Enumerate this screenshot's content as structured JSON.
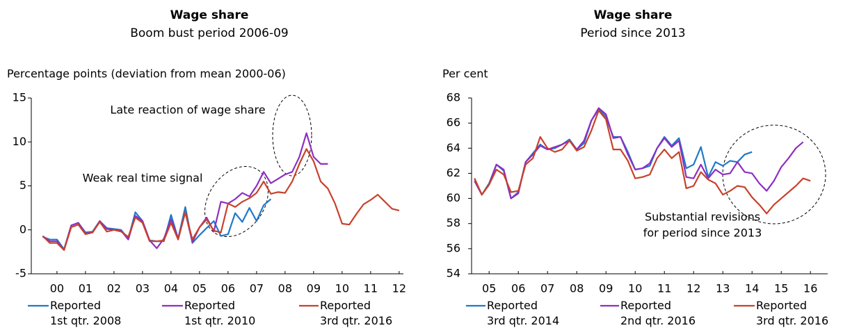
{
  "chart_data": [
    {
      "type": "line",
      "title": "Wage share",
      "subtitle": "Boom bust period 2006-09",
      "y_label": "Percentage points (deviation from mean 2000-06)",
      "annotations": [
        "Late reaction of wage share",
        "Weak real time signal"
      ],
      "legend": "bottom",
      "xlim": [
        1999.6,
        2012.65
      ],
      "ylim": [
        -5,
        15
      ],
      "yticks": [
        -5,
        0,
        5,
        10,
        15
      ],
      "xticks": [
        {
          "value": 2000.5,
          "label": "00"
        },
        {
          "value": 2001.5,
          "label": "01"
        },
        {
          "value": 2002.5,
          "label": "02"
        },
        {
          "value": 2003.5,
          "label": "03"
        },
        {
          "value": 2004.5,
          "label": "04"
        },
        {
          "value": 2005.5,
          "label": "05"
        },
        {
          "value": 2006.5,
          "label": "06"
        },
        {
          "value": 2007.5,
          "label": "07"
        },
        {
          "value": 2008.5,
          "label": "08"
        },
        {
          "value": 2009.5,
          "label": "09"
        },
        {
          "value": 2010.5,
          "label": "10"
        },
        {
          "value": 2011.5,
          "label": "11"
        },
        {
          "value": 2012.5,
          "label": "12"
        }
      ],
      "x": [
        2000,
        2000.25,
        2000.5,
        2000.75,
        2001,
        2001.25,
        2001.5,
        2001.75,
        2002,
        2002.25,
        2002.5,
        2002.75,
        2003,
        2003.25,
        2003.5,
        2003.75,
        2004,
        2004.25,
        2004.5,
        2004.75,
        2005,
        2005.25,
        2005.5,
        2005.75,
        2006,
        2006.25,
        2006.5,
        2006.75,
        2007,
        2007.25,
        2007.5,
        2007.75,
        2008,
        2008.25,
        2008.5,
        2008.75,
        2009,
        2009.25,
        2009.5,
        2009.75,
        2010,
        2010.25,
        2010.5,
        2010.75,
        2011,
        2011.25,
        2011.5,
        2011.75,
        2012,
        2012.25,
        2012.5
      ],
      "series": [
        {
          "name": "Reported\n1st qtr. 2008",
          "color": "#1f78c8",
          "values": [
            -0.8,
            -1.1,
            -1.1,
            -2.2,
            0.5,
            0.8,
            -0.3,
            -0.2,
            1.0,
            0.2,
            0.1,
            0.0,
            -1.0,
            2.0,
            1.0,
            -1.2,
            -1.3,
            -1.3,
            1.7,
            -1.0,
            2.6,
            -1.5,
            -0.6,
            0.2,
            1.0,
            -0.7,
            -0.5,
            1.9,
            0.9,
            2.5,
            1.0,
            2.8,
            3.5,
            null,
            null,
            null,
            null,
            null,
            null,
            null,
            null,
            null,
            null,
            null,
            null,
            null,
            null,
            null,
            null,
            null,
            null
          ]
        },
        {
          "name": "Reported\n1st qtr. 2010",
          "color": "#8e2fc0",
          "values": [
            -0.7,
            -1.3,
            -1.3,
            -2.3,
            0.5,
            0.8,
            -0.4,
            -0.3,
            1.0,
            0.1,
            0.0,
            -0.1,
            -1.1,
            1.6,
            1.0,
            -1.2,
            -2.1,
            -1.0,
            1.2,
            -1.0,
            2.0,
            -1.4,
            0.3,
            1.4,
            -0.2,
            3.2,
            3.0,
            3.5,
            4.2,
            3.8,
            5.0,
            6.6,
            5.3,
            5.8,
            6.3,
            6.6,
            8.3,
            11.0,
            8.3,
            7.5,
            7.5,
            null,
            null,
            null,
            null,
            null,
            null,
            null,
            null,
            null,
            null
          ]
        },
        {
          "name": "Reported\n3rd qtr. 2016",
          "color": "#c8412a",
          "values": [
            -0.7,
            -1.5,
            -1.5,
            -2.3,
            0.3,
            0.6,
            -0.5,
            -0.3,
            0.9,
            -0.2,
            0.0,
            -0.2,
            -0.8,
            1.4,
            0.8,
            -1.3,
            -1.3,
            -1.2,
            0.8,
            -1.1,
            2.0,
            -1.1,
            0.3,
            1.2,
            -0.1,
            -0.3,
            3.0,
            2.6,
            3.2,
            3.6,
            4.2,
            5.5,
            4.1,
            4.3,
            4.2,
            5.5,
            7.5,
            9.2,
            7.8,
            5.5,
            4.7,
            3.0,
            0.7,
            0.6,
            1.8,
            2.9,
            3.4,
            4.0,
            3.2,
            2.4,
            2.2
          ]
        }
      ]
    },
    {
      "type": "line",
      "title": "Wage share",
      "subtitle": "Period since 2013",
      "y_label": "Per cent",
      "annotations": [
        "Substantial revisions",
        "for period since 2013"
      ],
      "legend": "bottom",
      "xlim": [
        2004.9,
        2017.09
      ],
      "ylim": [
        54,
        68
      ],
      "yticks": [
        54,
        56,
        58,
        60,
        62,
        64,
        66,
        68
      ],
      "xticks": [
        {
          "value": 2005.5,
          "label": "05"
        },
        {
          "value": 2006.5,
          "label": "06"
        },
        {
          "value": 2007.5,
          "label": "07"
        },
        {
          "value": 2008.5,
          "label": "08"
        },
        {
          "value": 2009.5,
          "label": "09"
        },
        {
          "value": 2010.5,
          "label": "10"
        },
        {
          "value": 2011.5,
          "label": "11"
        },
        {
          "value": 2012.5,
          "label": "12"
        },
        {
          "value": 2013.5,
          "label": "13"
        },
        {
          "value": 2014.5,
          "label": "14"
        },
        {
          "value": 2015.5,
          "label": "15"
        },
        {
          "value": 2016.5,
          "label": "16"
        }
      ],
      "x": [
        2005,
        2005.25,
        2005.5,
        2005.75,
        2006,
        2006.25,
        2006.5,
        2006.75,
        2007,
        2007.25,
        2007.5,
        2007.75,
        2008,
        2008.25,
        2008.5,
        2008.75,
        2009,
        2009.25,
        2009.5,
        2009.75,
        2010,
        2010.25,
        2010.5,
        2010.75,
        2011,
        2011.25,
        2011.5,
        2011.75,
        2012,
        2012.25,
        2012.5,
        2012.75,
        2013,
        2013.25,
        2013.5,
        2013.75,
        2014,
        2014.25,
        2014.5,
        2014.75,
        2015,
        2015.25,
        2015.5,
        2015.75,
        2016,
        2016.25,
        2016.5
      ],
      "series": [
        {
          "name": "Reported\n3rd qtr. 2014",
          "color": "#1f78c8",
          "values": [
            61.6,
            60.3,
            61.2,
            62.7,
            62.2,
            60.0,
            60.5,
            62.9,
            63.6,
            64.3,
            63.9,
            64.0,
            64.3,
            64.7,
            63.9,
            64.4,
            66.2,
            67.1,
            66.5,
            64.9,
            64.9,
            63.7,
            62.3,
            62.4,
            62.6,
            64.0,
            64.9,
            64.2,
            64.8,
            62.4,
            62.7,
            64.1,
            61.7,
            62.9,
            62.6,
            63.0,
            62.9,
            63.5,
            63.7,
            null,
            null,
            null,
            null,
            null,
            null,
            null,
            null
          ]
        },
        {
          "name": "Reported\n2nd qtr. 2016",
          "color": "#8e2fc0",
          "values": [
            61.4,
            60.3,
            61.1,
            62.7,
            62.3,
            60.0,
            60.4,
            62.9,
            63.5,
            64.2,
            63.9,
            64.1,
            64.3,
            64.6,
            63.9,
            64.6,
            66.2,
            67.2,
            66.7,
            64.8,
            64.9,
            63.5,
            62.3,
            62.4,
            62.8,
            64.0,
            64.8,
            64.1,
            64.6,
            61.7,
            61.6,
            62.7,
            61.6,
            62.3,
            61.9,
            62.0,
            62.9,
            62.1,
            62.0,
            61.2,
            60.6,
            61.4,
            62.5,
            63.2,
            64.0,
            64.5,
            null
          ]
        },
        {
          "name": "Reported\n3rd qtr. 2016",
          "color": "#c8412a",
          "values": [
            61.6,
            60.3,
            61.1,
            62.3,
            61.9,
            60.5,
            60.6,
            62.7,
            63.2,
            64.9,
            64.0,
            63.7,
            63.9,
            64.6,
            63.8,
            64.1,
            65.4,
            67.0,
            66.3,
            63.9,
            63.9,
            63.0,
            61.6,
            61.7,
            61.9,
            63.2,
            63.9,
            63.2,
            63.7,
            60.8,
            61.0,
            62.1,
            61.5,
            61.2,
            60.3,
            60.6,
            61.0,
            60.9,
            60.1,
            59.5,
            58.8,
            59.5,
            60.0,
            60.5,
            61.0,
            61.6,
            61.4
          ]
        }
      ]
    }
  ]
}
